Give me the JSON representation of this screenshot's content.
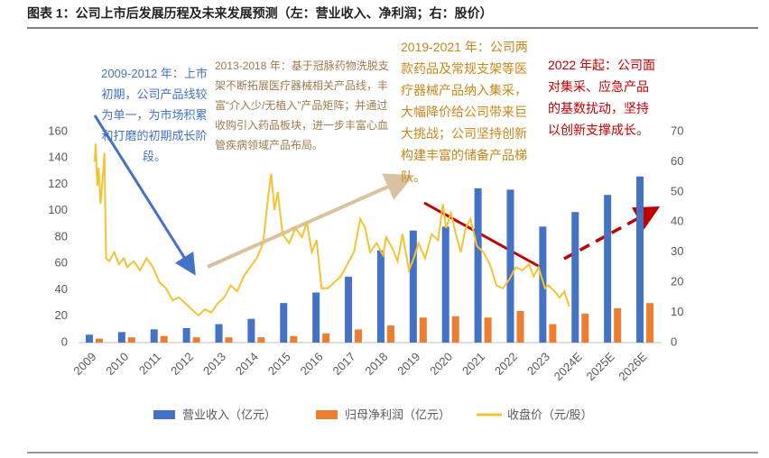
{
  "chart_data": {
    "type": "bar",
    "title": "图表 1：公司上市后发展历程及未来发展预测（左：营业收入、净利润；右：股价）",
    "categories": [
      "2009",
      "2010",
      "2011",
      "2012",
      "2013",
      "2014",
      "2015",
      "2016",
      "2017",
      "2018",
      "2019",
      "2020",
      "2021",
      "2022",
      "2023",
      "2024E",
      "2025E",
      "2026E"
    ],
    "series": [
      {
        "name": "营业收入（亿元）",
        "color": "#4472c4",
        "values": [
          6,
          8,
          10,
          11,
          14,
          18,
          30,
          38,
          50,
          70,
          85,
          88,
          117,
          116,
          88,
          99,
          112,
          126
        ]
      },
      {
        "name": "归母净利润（亿元）",
        "color": "#ed7d31",
        "values": [
          3,
          4,
          5,
          4,
          4,
          4,
          5,
          7,
          10,
          13,
          19,
          20,
          19,
          24,
          14,
          22,
          26,
          30
        ]
      },
      {
        "name": "收盘价（元/股）",
        "color": "#f5c232",
        "axis": "y2",
        "x": [
          2009.0,
          2009.03,
          2009.08,
          2009.12,
          2009.18,
          2009.25,
          2009.3,
          2009.35,
          2009.45,
          2009.6,
          2009.75,
          2009.9,
          2010.0,
          2010.2,
          2010.4,
          2010.6,
          2010.8,
          2011.0,
          2011.2,
          2011.4,
          2011.6,
          2011.8,
          2012.0,
          2012.2,
          2012.4,
          2012.6,
          2012.8,
          2013.0,
          2013.2,
          2013.4,
          2013.6,
          2013.8,
          2014.0,
          2014.2,
          2014.35,
          2014.45,
          2014.55,
          2014.65,
          2014.8,
          2015.0,
          2015.2,
          2015.4,
          2015.55,
          2015.7,
          2015.85,
          2016.0,
          2016.2,
          2016.4,
          2016.6,
          2016.8,
          2017.0,
          2017.2,
          2017.35,
          2017.5,
          2017.7,
          2017.9,
          2018.0,
          2018.2,
          2018.35,
          2018.5,
          2018.7,
          2018.85,
          2019.0,
          2019.2,
          2019.4,
          2019.6,
          2019.75,
          2019.85,
          2020.0,
          2020.15,
          2020.3,
          2020.45,
          2020.6,
          2020.8,
          2021.0,
          2021.2,
          2021.4,
          2021.6,
          2021.8,
          2022.0,
          2022.2,
          2022.4,
          2022.55,
          2022.7,
          2022.9,
          2023.0,
          2023.2,
          2023.35,
          2023.5,
          2023.65
        ],
        "values": [
          60,
          66,
          52,
          58,
          46,
          55,
          63,
          28,
          27,
          30,
          26,
          28,
          25,
          27,
          24,
          28,
          25,
          20,
          18,
          14,
          15,
          13,
          11,
          9,
          11,
          10,
          13,
          15,
          19,
          17,
          22,
          25,
          28,
          33,
          48,
          56,
          44,
          50,
          36,
          33,
          38,
          35,
          40,
          30,
          34,
          18,
          18,
          20,
          22,
          26,
          30,
          41,
          38,
          30,
          33,
          29,
          35,
          31,
          27,
          36,
          24,
          28,
          33,
          28,
          36,
          34,
          46,
          38,
          43,
          36,
          30,
          38,
          41,
          32,
          30,
          26,
          19,
          18,
          21,
          25,
          24,
          26,
          22,
          25,
          18,
          19,
          17,
          15,
          17,
          12
        ]
      }
    ],
    "ylim": [
      0,
      160
    ],
    "yticks": [
      0,
      20,
      40,
      60,
      80,
      100,
      120,
      140,
      160
    ],
    "y2lim": [
      0,
      70
    ],
    "y2ticks": [
      0,
      10,
      20,
      30,
      40,
      50,
      60,
      70
    ],
    "annotations": [
      {
        "text": "2009-2012 年：上市初期，公司产品线较为单一，为市场积累和打磨的初期成长阶段。",
        "color": "#4472c4"
      },
      {
        "text": "2013-2018 年：基于冠脉药物洗脱支架不断拓展医疗器械相关产品线，丰富“介入少/无植入”产品矩阵；并通过收购引入药品板块，进一步丰富心血管疾病领域产品布局。",
        "color": "#9c7a4f"
      },
      {
        "text": "2019-2021 年：公司两款药品及常规支架等医疗器械产品纳入集采，大幅降价给公司带来巨大挑战；公司坚持创新构建丰富的储备产品梯队。",
        "color": "#c8861a"
      },
      {
        "text": "2022 年起：公司面对集采、应急产品的基数扰动，坚持以创新支撑成长。",
        "color": "#c00000"
      }
    ]
  }
}
